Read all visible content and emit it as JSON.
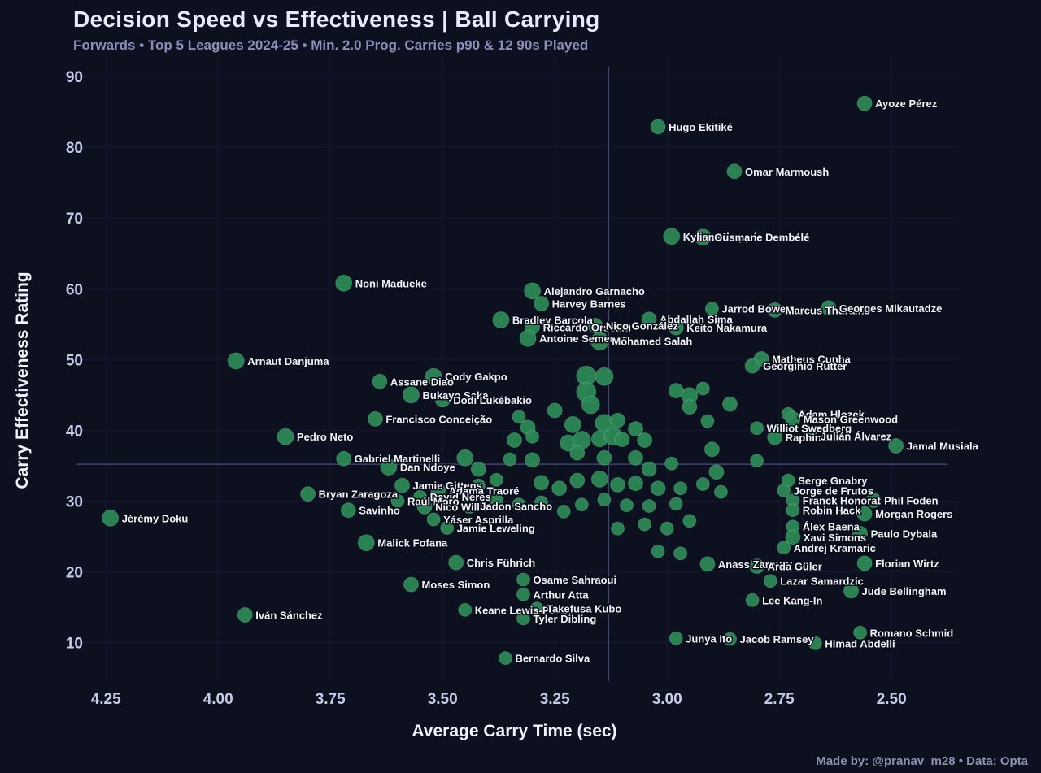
{
  "header": {
    "title": "Decision Speed vs Effectiveness | Ball Carrying",
    "subtitle": "Forwards • Top 5 Leagues 2024-25 • Min. 2.0 Prog. Carries p90 & 12 90s Played"
  },
  "footer": {
    "credit": "Made by: @pranav_m28  •  Data: Opta"
  },
  "colors": {
    "background": "#0c101f",
    "accent_green": "#2e8b57",
    "point_edge": "#7fd0a5",
    "title": "#e9ecf8",
    "subtitle": "#8a8fb9",
    "tick": "#c6cbe8",
    "grid": "#151a33",
    "mean_line": "#3d4573",
    "label": "#f2f4fc"
  },
  "chart_data": {
    "type": "scatter",
    "title": "Decision Speed vs Effectiveness | Ball Carrying",
    "subtitle": "Forwards • Top 5 Leagues 2024-25 • Min. 2.0 Prog. Carries p90 & 12 90s Played",
    "xlabel": "Average Carry Time (sec)",
    "ylabel": "Carry Effectiveness Rating",
    "x_axis_reversed": true,
    "xlim": [
      4.33,
      2.35
    ],
    "ylim": [
      5,
      93
    ],
    "x_ticks": [
      4.25,
      4.0,
      3.75,
      3.5,
      3.25,
      3.0,
      2.75,
      2.5
    ],
    "x_tick_labels": [
      "4.25",
      "4.00",
      "3.75",
      "3.50",
      "3.25",
      "3.00",
      "2.75",
      "2.50"
    ],
    "y_ticks": [
      10,
      20,
      30,
      40,
      50,
      60,
      70,
      80,
      90
    ],
    "mean_lines": {
      "x": 3.13,
      "y": 35.2
    },
    "legend": "none",
    "points": [
      [
        "Ayoze Pérez",
        2.56,
        86.2,
        9
      ],
      [
        "Hugo Ekitiké",
        3.02,
        82.9,
        9
      ],
      [
        "Omar Marmoush",
        2.85,
        76.6,
        9
      ],
      [
        "Kylian Mbappé",
        2.99,
        67.4,
        10
      ],
      [
        "Ousmane Dembélé",
        2.92,
        67.3,
        10
      ],
      [
        "Noni Madueke",
        3.72,
        60.8,
        10
      ],
      [
        "Alejandro Garnacho",
        3.3,
        59.7,
        10
      ],
      [
        "Harvey Barnes",
        3.28,
        57.9,
        9
      ],
      [
        "Jarrod Bowen",
        2.9,
        57.2,
        8
      ],
      [
        "Marcus Thuram",
        2.76,
        57.0,
        9
      ],
      [
        "Georges Mikautadze",
        2.64,
        57.3,
        9
      ],
      [
        "Bradley Barcola",
        3.37,
        55.6,
        10
      ],
      [
        "Abdallah Sima",
        3.04,
        55.7,
        9
      ],
      [
        "Riccardo Orsolini",
        3.3,
        54.6,
        9
      ],
      [
        "Nico González",
        3.16,
        54.8,
        9
      ],
      [
        "Keito Nakamura",
        2.98,
        54.5,
        9
      ],
      [
        "Antoine Semenyo",
        3.31,
        53.0,
        10
      ],
      [
        "Mohamed Salah",
        3.15,
        52.6,
        11
      ],
      [
        "Matheus Cunha",
        2.79,
        50.1,
        9
      ],
      [
        "Georginio Rutter",
        2.81,
        49.1,
        9
      ],
      [
        "Arnaut Danjuma",
        3.96,
        49.8,
        10
      ],
      [
        "Cody Gakpo",
        3.52,
        47.6,
        10
      ],
      [
        "Assane Diao",
        3.64,
        46.9,
        9
      ],
      [
        "Bukayo Saka",
        3.57,
        45.0,
        10
      ],
      [
        "Dodi Lukébakio",
        3.5,
        44.3,
        9
      ],
      [
        "Adam Hlozek",
        2.73,
        42.3,
        8
      ],
      [
        "Mason Greenwood",
        2.72,
        41.6,
        9
      ],
      [
        "Francisco Conceição",
        3.65,
        41.6,
        9
      ],
      [
        "Williot Swedberg",
        2.8,
        40.3,
        8
      ],
      [
        "Raphinha",
        2.76,
        39.0,
        9
      ],
      [
        "Julián Álvarez",
        2.68,
        39.2,
        8
      ],
      [
        "Jamal Musiala",
        2.49,
        37.8,
        9
      ],
      [
        "Pedro Neto",
        3.85,
        39.1,
        10
      ],
      [
        "Gabriel Martinelli",
        3.72,
        36.0,
        9
      ],
      [
        "Dan Ndoye",
        3.62,
        34.8,
        10
      ],
      [
        "Serge Gnabry",
        2.73,
        32.9,
        8
      ],
      [
        "Jorge de Frutos",
        2.74,
        31.5,
        8
      ],
      [
        "Bryan Zaragoza",
        3.8,
        31.0,
        9
      ],
      [
        "Jamie Gittens",
        3.59,
        32.2,
        9
      ],
      [
        "Adama Traoré",
        3.51,
        31.5,
        9
      ],
      [
        "David Neres",
        3.55,
        30.6,
        8
      ],
      [
        "Raúl Moro",
        3.6,
        30.0,
        8
      ],
      [
        "Nico Williams",
        3.54,
        29.2,
        9
      ],
      [
        "Jadon Sancho",
        3.44,
        29.3,
        9
      ],
      [
        "Savinho",
        3.71,
        28.7,
        9
      ],
      [
        "Jérémy Doku",
        4.24,
        27.6,
        10
      ],
      [
        "Franck Honorat",
        2.72,
        30.1,
        8
      ],
      [
        "Phil Foden",
        2.54,
        30.1,
        9
      ],
      [
        "Robin Hack",
        2.72,
        28.7,
        8
      ],
      [
        "Morgan Rogers",
        2.56,
        28.2,
        9
      ],
      [
        "Álex Baena",
        2.72,
        26.4,
        8
      ],
      [
        "Xavi Simons",
        2.72,
        24.9,
        9
      ],
      [
        "Paulo Dybala",
        2.57,
        25.4,
        9
      ],
      [
        "Yáser Asprilla",
        3.52,
        27.4,
        8
      ],
      [
        "Jamie Leweling",
        3.49,
        26.2,
        8
      ],
      [
        "Malick Fofana",
        3.67,
        24.1,
        10
      ],
      [
        "Andrej Kramaric",
        2.74,
        23.4,
        8
      ],
      [
        "Chris Führich",
        3.47,
        21.3,
        9
      ],
      [
        "Anass Zaroury",
        2.91,
        21.1,
        9
      ],
      [
        "Arda Güler",
        2.8,
        20.8,
        9
      ],
      [
        "Florian Wirtz",
        2.56,
        21.2,
        9
      ],
      [
        "Lazar Samardzic",
        2.77,
        18.7,
        8
      ],
      [
        "Moses Simon",
        3.57,
        18.2,
        9
      ],
      [
        "Osame Sahraoui",
        3.32,
        18.9,
        8
      ],
      [
        "Arthur Atta",
        3.32,
        16.8,
        8
      ],
      [
        "Lee Kang-In",
        2.81,
        16.0,
        8
      ],
      [
        "Jude Bellingham",
        2.59,
        17.3,
        9
      ],
      [
        "Keane Lewis-Potter",
        3.45,
        14.6,
        8
      ],
      [
        "Takefusa Kubo",
        3.29,
        14.8,
        8
      ],
      [
        "Tyler Dibling",
        3.32,
        13.4,
        8
      ],
      [
        "Iván Sánchez",
        3.94,
        13.9,
        9
      ],
      [
        "Junya Ito",
        2.98,
        10.6,
        8
      ],
      [
        "Jacob Ramsey",
        2.86,
        10.5,
        8
      ],
      [
        "Himad Abdelli",
        2.67,
        9.9,
        8
      ],
      [
        "Romano Schmid",
        2.57,
        11.4,
        8
      ],
      [
        "Bernardo Silva",
        3.36,
        7.8,
        8
      ]
    ],
    "unlabeled_points": [
      [
        3.18,
        47.7,
        12
      ],
      [
        3.14,
        47.6,
        11
      ],
      [
        3.18,
        45.4,
        12
      ],
      [
        3.17,
        43.6,
        11
      ],
      [
        2.98,
        45.6,
        9
      ],
      [
        2.95,
        44.9,
        10
      ],
      [
        2.92,
        45.9,
        8
      ],
      [
        2.95,
        43.3,
        9
      ],
      [
        2.86,
        43.7,
        9
      ],
      [
        3.25,
        42.8,
        9
      ],
      [
        3.33,
        41.9,
        8
      ],
      [
        3.31,
        40.4,
        9
      ],
      [
        3.21,
        40.8,
        10
      ],
      [
        3.14,
        41.0,
        11
      ],
      [
        3.11,
        41.4,
        9
      ],
      [
        3.07,
        40.2,
        9
      ],
      [
        2.91,
        41.3,
        8
      ],
      [
        3.34,
        38.6,
        9
      ],
      [
        3.3,
        39.1,
        8
      ],
      [
        3.22,
        38.2,
        10
      ],
      [
        3.19,
        38.6,
        11
      ],
      [
        3.15,
        38.8,
        10
      ],
      [
        3.12,
        39.2,
        11
      ],
      [
        3.1,
        38.7,
        9
      ],
      [
        3.05,
        38.6,
        9
      ],
      [
        2.9,
        37.3,
        9
      ],
      [
        2.8,
        35.7,
        8
      ],
      [
        3.45,
        36.1,
        10
      ],
      [
        3.42,
        34.5,
        9
      ],
      [
        3.35,
        35.9,
        8
      ],
      [
        3.3,
        35.8,
        9
      ],
      [
        3.2,
        36.8,
        9
      ],
      [
        3.14,
        36.1,
        9
      ],
      [
        3.07,
        36.1,
        9
      ],
      [
        3.04,
        34.5,
        9
      ],
      [
        2.99,
        35.3,
        8
      ],
      [
        2.89,
        34.1,
        9
      ],
      [
        3.42,
        32.2,
        8
      ],
      [
        3.38,
        33.0,
        8
      ],
      [
        3.28,
        32.6,
        9
      ],
      [
        3.24,
        31.8,
        9
      ],
      [
        3.2,
        32.9,
        9
      ],
      [
        3.15,
        33.1,
        10
      ],
      [
        3.11,
        32.3,
        9
      ],
      [
        3.07,
        32.5,
        9
      ],
      [
        3.02,
        31.8,
        9
      ],
      [
        2.97,
        31.8,
        8
      ],
      [
        2.92,
        32.4,
        8
      ],
      [
        2.88,
        31.3,
        8
      ],
      [
        3.38,
        30.1,
        8
      ],
      [
        3.33,
        29.5,
        8
      ],
      [
        3.28,
        29.8,
        8
      ],
      [
        3.23,
        28.5,
        8
      ],
      [
        3.19,
        29.5,
        8
      ],
      [
        3.14,
        30.2,
        8
      ],
      [
        3.09,
        29.4,
        8
      ],
      [
        3.04,
        29.3,
        8
      ],
      [
        2.98,
        29.6,
        8
      ],
      [
        3.11,
        26.1,
        8
      ],
      [
        3.05,
        26.7,
        8
      ],
      [
        3.0,
        26.1,
        8
      ],
      [
        2.95,
        27.2,
        8
      ],
      [
        3.02,
        22.9,
        8
      ],
      [
        2.97,
        22.6,
        8
      ]
    ]
  }
}
